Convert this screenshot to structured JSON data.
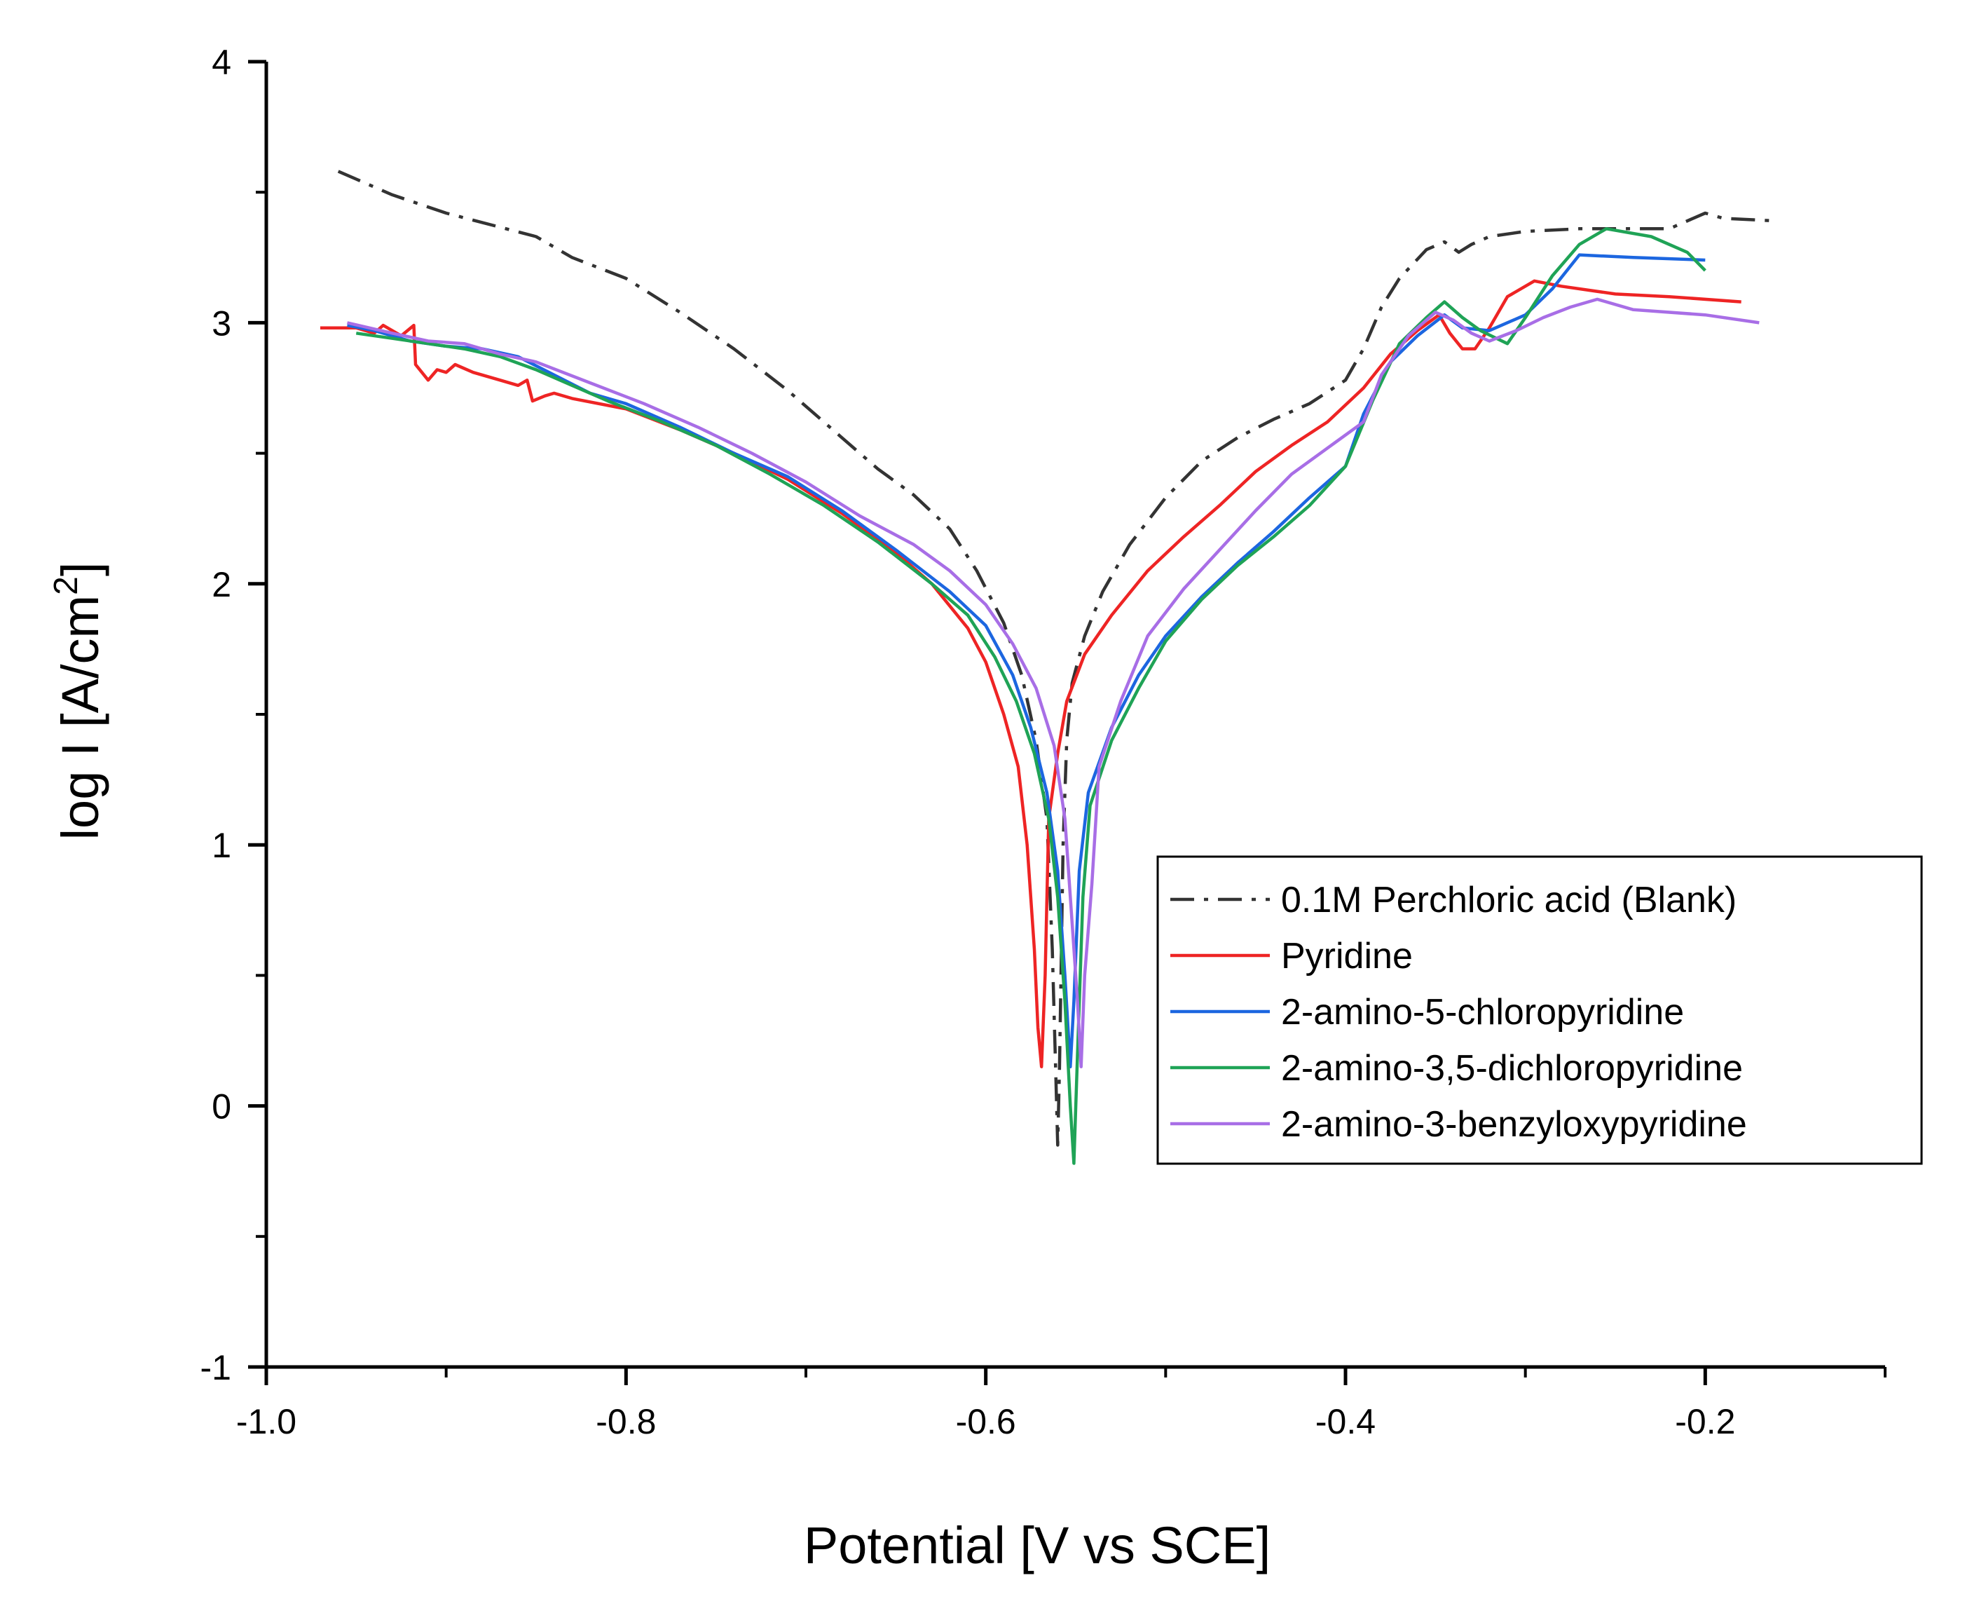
{
  "chart_data": {
    "type": "line",
    "xlabel": "Potential  [V vs SCE]",
    "ylabel_main": "log I [A/cm",
    "ylabel_sup": "2",
    "ylabel_end": "]",
    "xlim": [
      -1.0,
      -0.1
    ],
    "ylim": [
      -1,
      4
    ],
    "xticks": [
      -1.0,
      -0.8,
      -0.6,
      -0.4,
      -0.2
    ],
    "xtick_labels": [
      "-1.0",
      "-0.8",
      "-0.6",
      "-0.4",
      "-0.2"
    ],
    "yticks": [
      -1,
      0,
      1,
      2,
      3,
      4
    ],
    "ytick_labels": [
      "-1",
      "0",
      "1",
      "2",
      "3",
      "4"
    ],
    "legend_position": "center-right",
    "series": [
      {
        "name": "0.1M Perchloric acid (Blank)",
        "color": "#333333",
        "dash": "dashdot",
        "points": [
          [
            -0.96,
            3.58
          ],
          [
            -0.93,
            3.49
          ],
          [
            -0.9,
            3.42
          ],
          [
            -0.85,
            3.33
          ],
          [
            -0.83,
            3.25
          ],
          [
            -0.8,
            3.17
          ],
          [
            -0.77,
            3.04
          ],
          [
            -0.74,
            2.9
          ],
          [
            -0.71,
            2.74
          ],
          [
            -0.68,
            2.56
          ],
          [
            -0.66,
            2.44
          ],
          [
            -0.64,
            2.34
          ],
          [
            -0.62,
            2.21
          ],
          [
            -0.605,
            2.05
          ],
          [
            -0.59,
            1.85
          ],
          [
            -0.58,
            1.65
          ],
          [
            -0.572,
            1.4
          ],
          [
            -0.566,
            1.1
          ],
          [
            -0.563,
            0.6
          ],
          [
            -0.561,
            0.1
          ],
          [
            -0.56,
            -0.15
          ],
          [
            -0.559,
            0.15
          ],
          [
            -0.557,
            1.0
          ],
          [
            -0.555,
            1.4
          ],
          [
            -0.552,
            1.62
          ],
          [
            -0.545,
            1.8
          ],
          [
            -0.535,
            1.97
          ],
          [
            -0.52,
            2.15
          ],
          [
            -0.5,
            2.33
          ],
          [
            -0.48,
            2.47
          ],
          [
            -0.46,
            2.56
          ],
          [
            -0.44,
            2.63
          ],
          [
            -0.42,
            2.69
          ],
          [
            -0.4,
            2.78
          ],
          [
            -0.39,
            2.9
          ],
          [
            -0.38,
            3.06
          ],
          [
            -0.37,
            3.17
          ],
          [
            -0.355,
            3.28
          ],
          [
            -0.345,
            3.31
          ],
          [
            -0.337,
            3.27
          ],
          [
            -0.33,
            3.3
          ],
          [
            -0.32,
            3.33
          ],
          [
            -0.3,
            3.35
          ],
          [
            -0.27,
            3.36
          ],
          [
            -0.22,
            3.36
          ],
          [
            -0.2,
            3.42
          ],
          [
            -0.19,
            3.4
          ],
          [
            -0.16,
            3.39
          ]
        ]
      },
      {
        "name": "Pyridine",
        "color": "#ee2424",
        "dash": "solid",
        "points": [
          [
            -0.97,
            2.98
          ],
          [
            -0.95,
            2.98
          ],
          [
            -0.94,
            2.96
          ],
          [
            -0.935,
            2.99
          ],
          [
            -0.93,
            2.97
          ],
          [
            -0.925,
            2.95
          ],
          [
            -0.918,
            2.99
          ],
          [
            -0.917,
            2.84
          ],
          [
            -0.91,
            2.78
          ],
          [
            -0.905,
            2.82
          ],
          [
            -0.9,
            2.81
          ],
          [
            -0.895,
            2.84
          ],
          [
            -0.885,
            2.81
          ],
          [
            -0.87,
            2.78
          ],
          [
            -0.86,
            2.76
          ],
          [
            -0.855,
            2.78
          ],
          [
            -0.852,
            2.7
          ],
          [
            -0.845,
            2.72
          ],
          [
            -0.84,
            2.73
          ],
          [
            -0.83,
            2.71
          ],
          [
            -0.8,
            2.67
          ],
          [
            -0.77,
            2.59
          ],
          [
            -0.74,
            2.5
          ],
          [
            -0.71,
            2.4
          ],
          [
            -0.68,
            2.27
          ],
          [
            -0.65,
            2.12
          ],
          [
            -0.63,
            2.0
          ],
          [
            -0.61,
            1.83
          ],
          [
            -0.6,
            1.7
          ],
          [
            -0.59,
            1.5
          ],
          [
            -0.582,
            1.3
          ],
          [
            -0.577,
            1.0
          ],
          [
            -0.573,
            0.6
          ],
          [
            -0.571,
            0.3
          ],
          [
            -0.569,
            0.15
          ],
          [
            -0.567,
            0.5
          ],
          [
            -0.565,
            1.1
          ],
          [
            -0.56,
            1.35
          ],
          [
            -0.555,
            1.55
          ],
          [
            -0.545,
            1.73
          ],
          [
            -0.53,
            1.88
          ],
          [
            -0.51,
            2.05
          ],
          [
            -0.49,
            2.18
          ],
          [
            -0.47,
            2.3
          ],
          [
            -0.45,
            2.43
          ],
          [
            -0.43,
            2.53
          ],
          [
            -0.41,
            2.62
          ],
          [
            -0.39,
            2.75
          ],
          [
            -0.375,
            2.88
          ],
          [
            -0.36,
            2.97
          ],
          [
            -0.348,
            3.03
          ],
          [
            -0.342,
            2.96
          ],
          [
            -0.335,
            2.9
          ],
          [
            -0.328,
            2.9
          ],
          [
            -0.32,
            2.98
          ],
          [
            -0.31,
            3.1
          ],
          [
            -0.295,
            3.16
          ],
          [
            -0.28,
            3.14
          ],
          [
            -0.25,
            3.11
          ],
          [
            -0.22,
            3.1
          ],
          [
            -0.18,
            3.08
          ]
        ]
      },
      {
        "name": "2-amino-5-chloropyridine",
        "color": "#1c66e0",
        "dash": "solid",
        "points": [
          [
            -0.955,
            2.99
          ],
          [
            -0.94,
            2.97
          ],
          [
            -0.92,
            2.93
          ],
          [
            -0.9,
            2.91
          ],
          [
            -0.88,
            2.9
          ],
          [
            -0.86,
            2.87
          ],
          [
            -0.84,
            2.8
          ],
          [
            -0.82,
            2.73
          ],
          [
            -0.8,
            2.69
          ],
          [
            -0.77,
            2.6
          ],
          [
            -0.74,
            2.5
          ],
          [
            -0.71,
            2.41
          ],
          [
            -0.68,
            2.28
          ],
          [
            -0.65,
            2.13
          ],
          [
            -0.62,
            1.97
          ],
          [
            -0.6,
            1.84
          ],
          [
            -0.585,
            1.65
          ],
          [
            -0.575,
            1.45
          ],
          [
            -0.566,
            1.2
          ],
          [
            -0.56,
            0.9
          ],
          [
            -0.556,
            0.5
          ],
          [
            -0.553,
            0.15
          ],
          [
            -0.551,
            0.4
          ],
          [
            -0.548,
            0.9
          ],
          [
            -0.543,
            1.2
          ],
          [
            -0.53,
            1.45
          ],
          [
            -0.515,
            1.65
          ],
          [
            -0.5,
            1.8
          ],
          [
            -0.48,
            1.95
          ],
          [
            -0.46,
            2.08
          ],
          [
            -0.44,
            2.2
          ],
          [
            -0.42,
            2.33
          ],
          [
            -0.4,
            2.45
          ],
          [
            -0.39,
            2.65
          ],
          [
            -0.375,
            2.85
          ],
          [
            -0.36,
            2.95
          ],
          [
            -0.345,
            3.03
          ],
          [
            -0.335,
            2.98
          ],
          [
            -0.32,
            2.97
          ],
          [
            -0.3,
            3.03
          ],
          [
            -0.285,
            3.13
          ],
          [
            -0.27,
            3.26
          ],
          [
            -0.24,
            3.25
          ],
          [
            -0.2,
            3.24
          ]
        ]
      },
      {
        "name": "2-amino-3,5-dichloropyridine",
        "color": "#1fa356",
        "dash": "solid",
        "points": [
          [
            -0.95,
            2.96
          ],
          [
            -0.93,
            2.94
          ],
          [
            -0.91,
            2.92
          ],
          [
            -0.89,
            2.9
          ],
          [
            -0.87,
            2.87
          ],
          [
            -0.85,
            2.82
          ],
          [
            -0.83,
            2.76
          ],
          [
            -0.81,
            2.7
          ],
          [
            -0.78,
            2.62
          ],
          [
            -0.75,
            2.53
          ],
          [
            -0.72,
            2.42
          ],
          [
            -0.69,
            2.3
          ],
          [
            -0.66,
            2.16
          ],
          [
            -0.63,
            2.0
          ],
          [
            -0.61,
            1.88
          ],
          [
            -0.595,
            1.72
          ],
          [
            -0.583,
            1.55
          ],
          [
            -0.573,
            1.35
          ],
          [
            -0.565,
            1.1
          ],
          [
            -0.56,
            0.8
          ],
          [
            -0.556,
            0.4
          ],
          [
            -0.553,
            0.0
          ],
          [
            -0.551,
            -0.22
          ],
          [
            -0.549,
            0.2
          ],
          [
            -0.546,
            0.8
          ],
          [
            -0.542,
            1.15
          ],
          [
            -0.53,
            1.4
          ],
          [
            -0.515,
            1.6
          ],
          [
            -0.5,
            1.78
          ],
          [
            -0.48,
            1.94
          ],
          [
            -0.46,
            2.07
          ],
          [
            -0.44,
            2.18
          ],
          [
            -0.42,
            2.3
          ],
          [
            -0.4,
            2.45
          ],
          [
            -0.385,
            2.7
          ],
          [
            -0.37,
            2.92
          ],
          [
            -0.355,
            3.02
          ],
          [
            -0.345,
            3.08
          ],
          [
            -0.335,
            3.02
          ],
          [
            -0.325,
            2.97
          ],
          [
            -0.31,
            2.92
          ],
          [
            -0.3,
            3.02
          ],
          [
            -0.285,
            3.18
          ],
          [
            -0.27,
            3.3
          ],
          [
            -0.255,
            3.36
          ],
          [
            -0.23,
            3.33
          ],
          [
            -0.21,
            3.27
          ],
          [
            -0.2,
            3.2
          ]
        ]
      },
      {
        "name": "2-amino-3-benzyloxypyridine",
        "color": "#a86ee6",
        "dash": "solid",
        "points": [
          [
            -0.955,
            3.0
          ],
          [
            -0.93,
            2.96
          ],
          [
            -0.91,
            2.93
          ],
          [
            -0.89,
            2.92
          ],
          [
            -0.87,
            2.88
          ],
          [
            -0.85,
            2.85
          ],
          [
            -0.82,
            2.77
          ],
          [
            -0.79,
            2.69
          ],
          [
            -0.76,
            2.6
          ],
          [
            -0.73,
            2.5
          ],
          [
            -0.7,
            2.39
          ],
          [
            -0.67,
            2.26
          ],
          [
            -0.64,
            2.15
          ],
          [
            -0.62,
            2.05
          ],
          [
            -0.6,
            1.92
          ],
          [
            -0.585,
            1.77
          ],
          [
            -0.572,
            1.6
          ],
          [
            -0.562,
            1.38
          ],
          [
            -0.556,
            1.1
          ],
          [
            -0.552,
            0.7
          ],
          [
            -0.549,
            0.4
          ],
          [
            -0.547,
            0.15
          ],
          [
            -0.545,
            0.5
          ],
          [
            -0.541,
            0.85
          ],
          [
            -0.537,
            1.3
          ],
          [
            -0.525,
            1.55
          ],
          [
            -0.51,
            1.8
          ],
          [
            -0.49,
            1.98
          ],
          [
            -0.47,
            2.13
          ],
          [
            -0.45,
            2.28
          ],
          [
            -0.43,
            2.42
          ],
          [
            -0.41,
            2.52
          ],
          [
            -0.39,
            2.62
          ],
          [
            -0.38,
            2.8
          ],
          [
            -0.365,
            2.95
          ],
          [
            -0.35,
            3.04
          ],
          [
            -0.34,
            3.01
          ],
          [
            -0.33,
            2.96
          ],
          [
            -0.32,
            2.93
          ],
          [
            -0.305,
            2.97
          ],
          [
            -0.29,
            3.02
          ],
          [
            -0.275,
            3.06
          ],
          [
            -0.26,
            3.09
          ],
          [
            -0.24,
            3.05
          ],
          [
            -0.2,
            3.03
          ],
          [
            -0.17,
            3.0
          ]
        ]
      }
    ]
  }
}
